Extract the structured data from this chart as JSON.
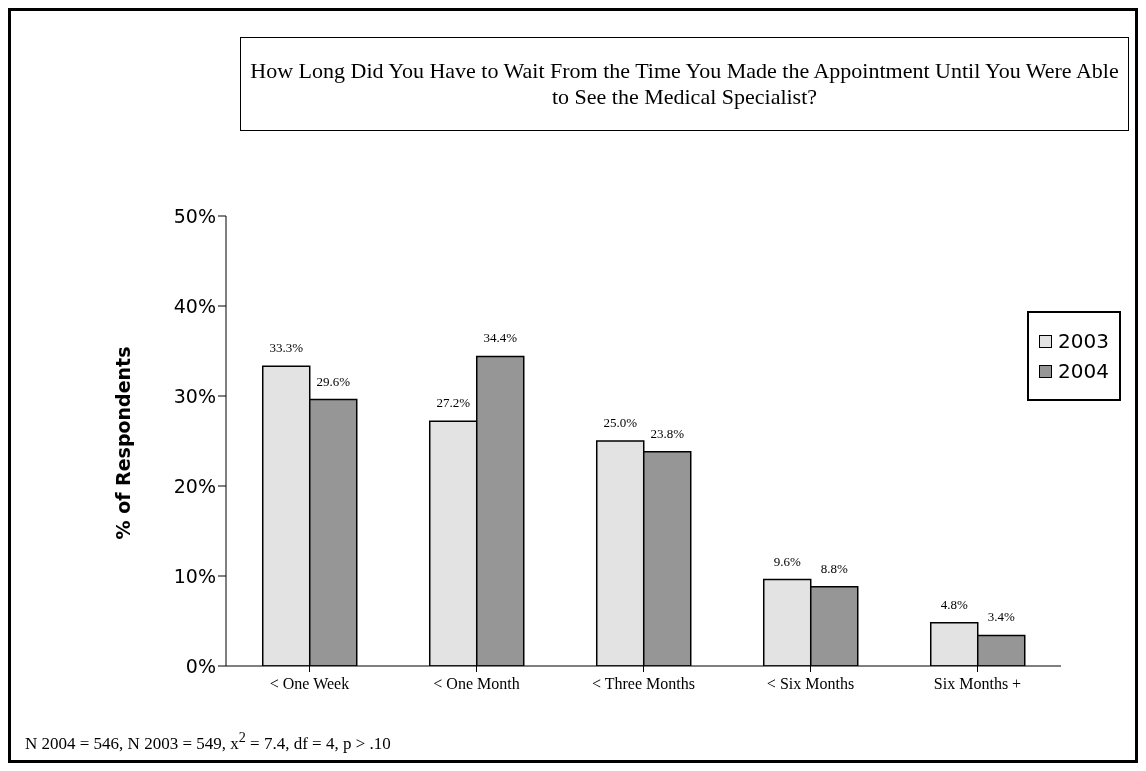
{
  "chart_data": {
    "type": "bar",
    "title": "How Long Did You Have to Wait From the Time You Made the Appointment Until You Were Able to See the Medical Specialist?",
    "ylabel": "% of Respondents",
    "categories": [
      "< One Week",
      "< One Month",
      "< Three Months",
      "< Six Months",
      "Six Months +"
    ],
    "series": [
      {
        "name": "2003",
        "color": "#e3e3e3",
        "values": [
          33.3,
          27.2,
          25.0,
          9.6,
          4.8
        ],
        "value_labels": [
          "33.3%",
          "27.2%",
          "25.0%",
          "9.6%",
          "4.8%"
        ]
      },
      {
        "name": "2004",
        "color": "#969696",
        "values": [
          29.6,
          34.4,
          23.8,
          8.8,
          3.4
        ],
        "value_labels": [
          "29.6%",
          "34.4%",
          "23.8%",
          "8.8%",
          "3.4%"
        ]
      }
    ],
    "ylim": [
      0,
      50
    ],
    "yticks": [
      {
        "value": 0,
        "label": "0%"
      },
      {
        "value": 10,
        "label": "10%"
      },
      {
        "value": 20,
        "label": "20%"
      },
      {
        "value": 30,
        "label": "30%"
      },
      {
        "value": 40,
        "label": "40%"
      },
      {
        "value": 50,
        "label": "50%"
      }
    ],
    "grid": false,
    "legend": "right",
    "annotations": [
      "N 2004 = 546, N 2003 = 549, x$^{2}$ = 7.4, df = 4, p > .10"
    ]
  }
}
